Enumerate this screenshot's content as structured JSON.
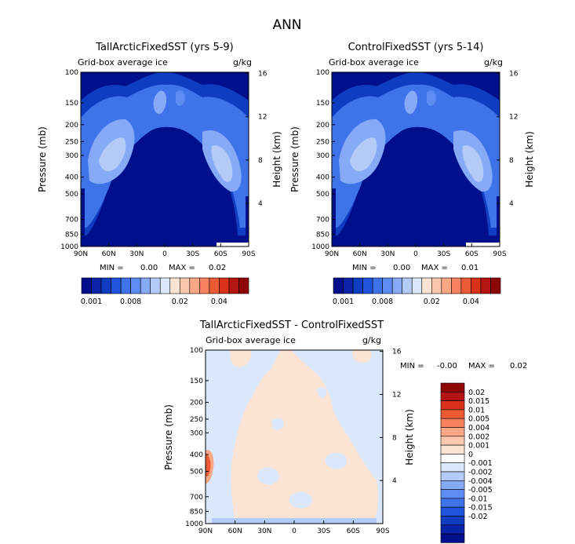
{
  "page_title": "ANN",
  "colors": {
    "blues": [
      "#000f8c",
      "#0a23a8",
      "#0f3dc2",
      "#1f55dc",
      "#3f73ea",
      "#5d8df2",
      "#86aaf5",
      "#b4cbf8",
      "#dbe7fb"
    ],
    "reds": [
      "#fbe3d4",
      "#fbc8ae",
      "#f9a784",
      "#f5825d",
      "#ec5a33",
      "#d8321a",
      "#b51512",
      "#8e0707"
    ]
  },
  "chart_data": [
    {
      "type": "heatmap",
      "title": "TallArcticFixedSST (yrs 5-9)",
      "subtitle": "Grid-box average ice",
      "units": "g/kg",
      "ylabel": "Pressure (mb)",
      "ylabel_right": "Height (km)",
      "x_ticks": [
        "90N",
        "60N",
        "30N",
        "0",
        "30S",
        "60S",
        "90S"
      ],
      "y_ticks": [
        "100",
        "150",
        "200",
        "250",
        "300",
        "400",
        "500",
        "700",
        "850",
        "1000"
      ],
      "y_ticks_right": [
        "16",
        "12",
        "8",
        "4"
      ],
      "ylim": [
        1000,
        100
      ],
      "y_scale": "log",
      "min_label": "MIN =",
      "min": "0.00",
      "max_label": "MAX =",
      "max": "0.02",
      "colorbar_labels": [
        "0.001",
        "0.008",
        "0.02",
        "0.04"
      ]
    },
    {
      "type": "heatmap",
      "title": "ControlFixedSST (yrs 5-14)",
      "subtitle": "Grid-box average ice",
      "units": "g/kg",
      "ylabel": "Pressure (mb)",
      "ylabel_right": "Height (km)",
      "x_ticks": [
        "90N",
        "60N",
        "30N",
        "0",
        "30S",
        "60S",
        "90S"
      ],
      "y_ticks": [
        "100",
        "150",
        "200",
        "250",
        "300",
        "400",
        "500",
        "700",
        "850",
        "1000"
      ],
      "y_ticks_right": [
        "16",
        "12",
        "8",
        "4"
      ],
      "ylim": [
        1000,
        100
      ],
      "y_scale": "log",
      "min_label": "MIN =",
      "min": "0.00",
      "max_label": "MAX =",
      "max": "0.01",
      "colorbar_labels": [
        "0.001",
        "0.008",
        "0.02",
        "0.04"
      ]
    },
    {
      "type": "heatmap",
      "title": "TallArcticFixedSST - ControlFixedSST",
      "subtitle": "Grid-box average ice",
      "units": "g/kg",
      "ylabel": "Pressure (mb)",
      "ylabel_right": "Height (km)",
      "x_ticks": [
        "90N",
        "60N",
        "30N",
        "0",
        "30S",
        "60S",
        "90S"
      ],
      "y_ticks": [
        "100",
        "150",
        "200",
        "250",
        "300",
        "400",
        "500",
        "700",
        "850",
        "1000"
      ],
      "y_ticks_right": [
        "16",
        "12",
        "8",
        "4"
      ],
      "ylim": [
        1000,
        100
      ],
      "y_scale": "log",
      "min_label": "MIN =",
      "min": "-0.00",
      "max_label": "MAX =",
      "max": "0.02",
      "colorbar_labels": [
        "0.02",
        "0.015",
        "0.01",
        "0.005",
        "0.004",
        "0.002",
        "0.001",
        "0",
        "-0.001",
        "-0.002",
        "-0.004",
        "-0.005",
        "-0.01",
        "-0.015",
        "-0.02"
      ]
    }
  ]
}
